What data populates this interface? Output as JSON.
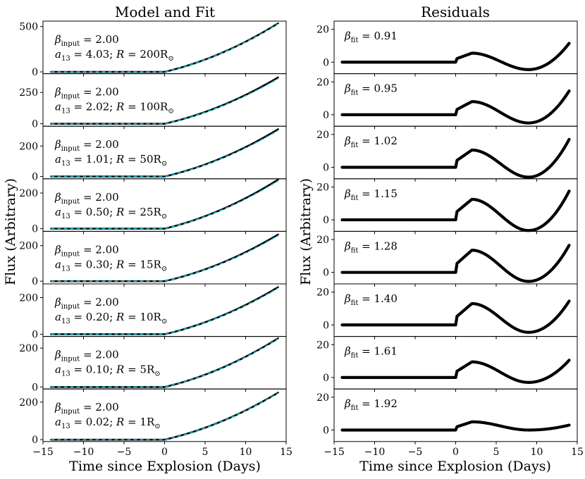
{
  "figure": {
    "left_title": "Model and Fit",
    "right_title": "Residuals",
    "xlabel": "Time since Explosion (Days)",
    "left_ylabel": "Flux (Arbitrary)",
    "right_ylabel": "Flux (Arbitrary)"
  },
  "colors": {
    "model": "#000000",
    "fit": "#17becf",
    "residual": "#000000"
  },
  "chart_data": [
    {
      "type": "line",
      "title": "Model and Fit",
      "xlabel": "Time since Explosion (Days)",
      "ylabel": "Flux (Arbitrary)",
      "xlim": [
        -15,
        15
      ],
      "xticks": [
        -15,
        -10,
        -5,
        0,
        5,
        10,
        15
      ],
      "xtick_labels": [
        "−15",
        "−10",
        "−5",
        "0",
        "5",
        "10",
        "15"
      ],
      "series": [
        {
          "name": "model (solid black)"
        },
        {
          "name": "fit (dashed cyan)"
        }
      ],
      "panels": [
        {
          "beta_input": "2.00",
          "a13": "4.03",
          "R": "200",
          "ylim": [
            -20,
            560
          ],
          "yticks": [
            0,
            500
          ],
          "y_end": 535,
          "fit_end": 530
        },
        {
          "beta_input": "2.00",
          "a13": "2.02",
          "R": "100",
          "ylim": [
            -20,
            400
          ],
          "yticks": [
            0,
            250
          ],
          "y_end": 370,
          "fit_end": 360
        },
        {
          "beta_input": "2.00",
          "a13": "1.01",
          "R": "50",
          "ylim": [
            -15,
            330
          ],
          "yticks": [
            0,
            200
          ],
          "y_end": 310,
          "fit_end": 302
        },
        {
          "beta_input": "2.00",
          "a13": "0.50",
          "R": "25",
          "ylim": [
            -15,
            280
          ],
          "yticks": [
            0,
            200
          ],
          "y_end": 275,
          "fit_end": 268
        },
        {
          "beta_input": "2.00",
          "a13": "0.30",
          "R": "15",
          "ylim": [
            -15,
            280
          ],
          "yticks": [
            0,
            200
          ],
          "y_end": 262,
          "fit_end": 256
        },
        {
          "beta_input": "2.00",
          "a13": "0.20",
          "R": "10",
          "ylim": [
            -12,
            275
          ],
          "yticks": [
            0,
            200
          ],
          "y_end": 257,
          "fit_end": 252
        },
        {
          "beta_input": "2.00",
          "a13": "0.10",
          "R": "5",
          "ylim": [
            -10,
            260
          ],
          "yticks": [
            0,
            200
          ],
          "y_end": 250,
          "fit_end": 247
        },
        {
          "beta_input": "2.00",
          "a13": "0.02",
          "R": "1",
          "ylim": [
            -10,
            270
          ],
          "yticks": [
            0,
            200
          ],
          "y_end": 250,
          "fit_end": 248
        }
      ]
    },
    {
      "type": "line",
      "title": "Residuals",
      "xlabel": "Time since Explosion (Days)",
      "ylabel": "Flux (Arbitrary)",
      "xlim": [
        -15,
        15
      ],
      "xticks": [
        -15,
        -10,
        -5,
        0,
        5,
        10,
        15
      ],
      "xtick_labels": [
        "−15",
        "−10",
        "−5",
        "0",
        "5",
        "10",
        "15"
      ],
      "ylim": [
        -7,
        25
      ],
      "yticks": [
        0,
        20
      ],
      "panels": [
        {
          "beta_fit": "0.91",
          "peak": 5.5,
          "trough": -4.5,
          "end": 11.5
        },
        {
          "beta_fit": "0.95",
          "peak": 8.0,
          "trough": -5.0,
          "end": 14.5
        },
        {
          "beta_fit": "1.02",
          "peak": 10.5,
          "trough": -6.0,
          "end": 17.0
        },
        {
          "beta_fit": "1.15",
          "peak": 12.5,
          "trough": -6.5,
          "end": 17.5
        },
        {
          "beta_fit": "1.28",
          "peak": 13.5,
          "trough": -5.5,
          "end": 16.5
        },
        {
          "beta_fit": "1.40",
          "peak": 13.0,
          "trough": -4.5,
          "end": 14.5
        },
        {
          "beta_fit": "1.61",
          "peak": 9.5,
          "trough": -3.0,
          "end": 10.5
        },
        {
          "beta_fit": "1.92",
          "peak": 5.0,
          "trough": 0.0,
          "end": 3.0
        }
      ]
    }
  ]
}
